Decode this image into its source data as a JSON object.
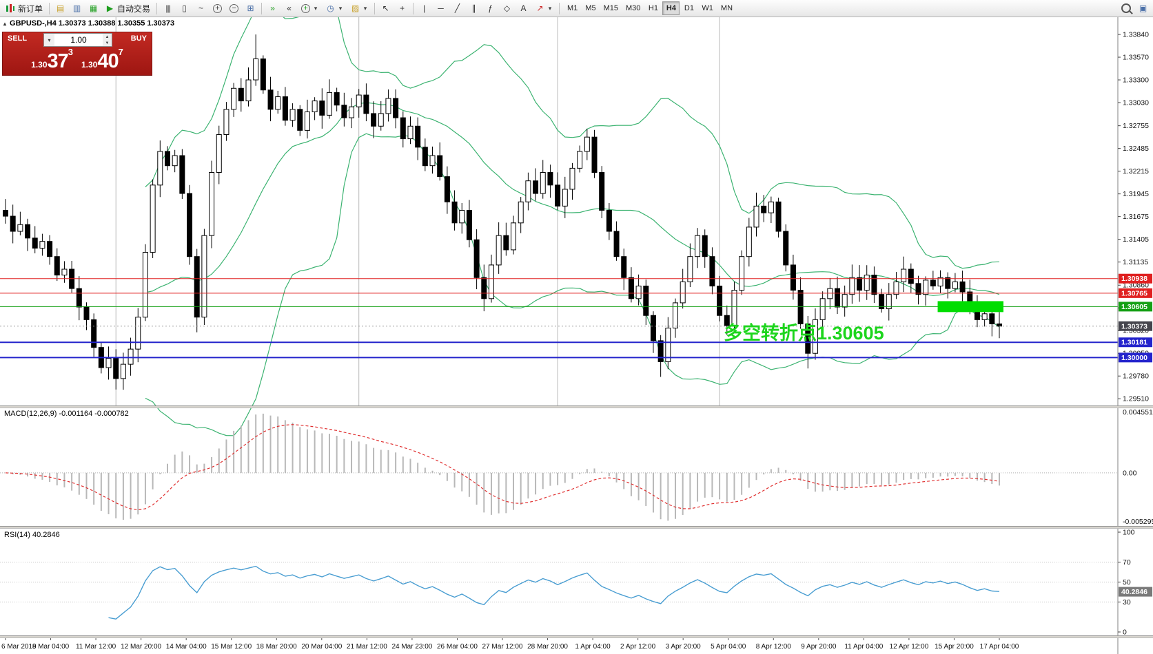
{
  "toolbar": {
    "new_order_label": "新订单",
    "auto_trading_label": "自动交易",
    "timeframes": [
      "M1",
      "M5",
      "M15",
      "M30",
      "H1",
      "H4",
      "D1",
      "W1",
      "MN"
    ],
    "active_timeframe": "H4"
  },
  "icons": {
    "market-watch-icon": "▤",
    "data-window-icon": "▥",
    "navigator-icon": "▦",
    "play-icon": "▶",
    "bar-chart-icon": "|||",
    "candlestick-icon": "▯",
    "line-chart-icon": "~",
    "zoom-in-icon": "+",
    "zoom-out-icon": "−",
    "grid-icon": "⊞",
    "auto-scroll-icon": "»",
    "chart-shift-icon": "«",
    "indicators-icon": "+",
    "clock-icon": "◷",
    "template-icon": "▨",
    "cursor-icon": "↖",
    "crosshair-icon": "+",
    "vertical-line-icon": "|",
    "horizontal-line-icon": "─",
    "trendline-icon": "╱",
    "channel-icon": "∥",
    "fibonacci-icon": "ƒ",
    "shapes-icon": "◇",
    "text-icon": "A",
    "arrows-icon": "↗",
    "caret-down-icon": "▾",
    "panels-icon": "▣"
  },
  "symbol_header": {
    "collapse_icon": "▴",
    "text": "GBPUSD-,H4 1.30373 1.30388 1.30355 1.30373"
  },
  "trade_panel": {
    "sell_label": "SELL",
    "buy_label": "BUY",
    "volume": "1.00",
    "sell_price_small": "1.30",
    "sell_price_big": "37",
    "sell_price_sup": "3",
    "buy_price_small": "1.30",
    "buy_price_big": "40",
    "buy_price_sup": "7"
  },
  "chart_data": {
    "type": "candlestick",
    "symbol": "GBPUSD-",
    "timeframe": "H4",
    "price_max": 1.34045,
    "price_min": 1.2943,
    "first_open": 1.3175,
    "wick_min": 0.0004,
    "wick_max": 0.0016,
    "closes": [
      1.3168,
      1.315,
      1.3158,
      1.3142,
      1.313,
      1.3138,
      1.312,
      1.3098,
      1.3105,
      1.3082,
      1.306,
      1.3045,
      1.3012,
      1.2988,
      1.2999,
      1.2975,
      1.2992,
      1.301,
      1.3048,
      1.3125,
      1.3205,
      1.3245,
      1.3228,
      1.324,
      1.3195,
      1.312,
      1.3048,
      1.3145,
      1.322,
      1.3265,
      1.3295,
      1.332,
      1.3305,
      1.333,
      1.3355,
      1.3318,
      1.3295,
      1.331,
      1.3282,
      1.3295,
      1.327,
      1.3292,
      1.3305,
      1.3288,
      1.3315,
      1.33,
      1.3285,
      1.3298,
      1.3312,
      1.329,
      1.3275,
      1.329,
      1.3308,
      1.3285,
      1.326,
      1.3275,
      1.325,
      1.3228,
      1.324,
      1.3215,
      1.3185,
      1.316,
      1.3175,
      1.314,
      1.3095,
      1.307,
      1.311,
      1.3145,
      1.3128,
      1.316,
      1.3185,
      1.321,
      1.3195,
      1.322,
      1.3205,
      1.318,
      1.32,
      1.3225,
      1.3245,
      1.3262,
      1.322,
      1.3175,
      1.315,
      1.312,
      1.3095,
      1.307,
      1.3085,
      1.305,
      1.302,
      1.2995,
      1.3035,
      1.3065,
      1.309,
      1.312,
      1.3145,
      1.312,
      1.3085,
      1.305,
      1.3038,
      1.308,
      1.312,
      1.3155,
      1.318,
      1.3172,
      1.3185,
      1.315,
      1.311,
      1.308,
      1.304,
      1.3005,
      1.3045,
      1.307,
      1.3082,
      1.306,
      1.3075,
      1.3095,
      1.308,
      1.3098,
      1.3075,
      1.3058,
      1.3075,
      1.309,
      1.3105,
      1.3088,
      1.3075,
      1.3092,
      1.3085,
      1.3095,
      1.3082,
      1.309,
      1.3078,
      1.306,
      1.3045,
      1.3052,
      1.304,
      1.30373
    ],
    "spike_overrides": {
      "15": {
        "low": 1.2962
      },
      "21": {
        "high": 1.3258
      },
      "26": {
        "low": 1.303
      },
      "34": {
        "high": 1.3384
      },
      "65": {
        "low": 1.3055
      },
      "79": {
        "high": 1.3272
      },
      "89": {
        "low": 1.2977
      },
      "102": {
        "high": 1.3196
      },
      "109": {
        "low": 1.2987
      },
      "122": {
        "high": 1.312
      }
    },
    "bollinger": {
      "period": 20,
      "deviation": 2,
      "color": "#3cb371"
    },
    "hlines": [
      {
        "price": 1.30938,
        "color": "#e02020",
        "width": 1
      },
      {
        "price": 1.30765,
        "color": "#e02020",
        "width": 1
      },
      {
        "price": 1.30605,
        "color": "#15a015",
        "width": 1
      },
      {
        "price": 1.30181,
        "color": "#2424cc",
        "width": 2
      },
      {
        "price": 1.3,
        "color": "#2424cc",
        "width": 2
      }
    ],
    "current_price": 1.30373,
    "current_badge_color": "#45454d",
    "scale_ticks": [
      1.3384,
      1.3357,
      1.333,
      1.3303,
      1.32755,
      1.32485,
      1.32215,
      1.31945,
      1.31675,
      1.31405,
      1.31135,
      1.3086,
      1.3059,
      1.3032,
      1.3005,
      1.2978,
      1.2951
    ],
    "separators_at_bars": [
      15,
      48,
      75,
      97
    ],
    "highlight_box": {
      "bar_start": 127,
      "bar_end": 135,
      "price_top": 1.3067,
      "price_bottom": 1.3054,
      "color": "#00dd00"
    },
    "annotation": {
      "text": "多空转折点1.30605",
      "color": "#1dd51d"
    }
  },
  "macd": {
    "label": "MACD(12,26,9) -0.001164 -0.000782",
    "fast": 12,
    "slow": 26,
    "signal_period": 9,
    "scale_top": "0.004551",
    "scale_zero": "0.00",
    "scale_bottom": "-0.005295",
    "histogram_color": "#b8b8b8",
    "signal_color": "#e03030"
  },
  "rsi": {
    "label": "RSI(14) 40.2846",
    "period": 14,
    "current": "40.2846",
    "line_color": "#4a9ed2",
    "levels": [
      70,
      50,
      30
    ],
    "scale_values": [
      100,
      70,
      50,
      30,
      0
    ]
  },
  "time_axis": {
    "labels": [
      "6 Mar 2019",
      "8 Mar 04:00",
      "11 Mar 12:00",
      "12 Mar 20:00",
      "14 Mar 04:00",
      "15 Mar 12:00",
      "18 Mar 20:00",
      "20 Mar 04:00",
      "21 Mar 12:00",
      "24 Mar 23:00",
      "26 Mar 04:00",
      "27 Mar 12:00",
      "28 Mar 20:00",
      "1 Apr 04:00",
      "2 Apr 12:00",
      "3 Apr 20:00",
      "5 Apr 04:00",
      "8 Apr 12:00",
      "9 Apr 20:00",
      "11 Apr 04:00",
      "12 Apr 12:00",
      "15 Apr 20:00",
      "17 Apr 04:00"
    ]
  }
}
